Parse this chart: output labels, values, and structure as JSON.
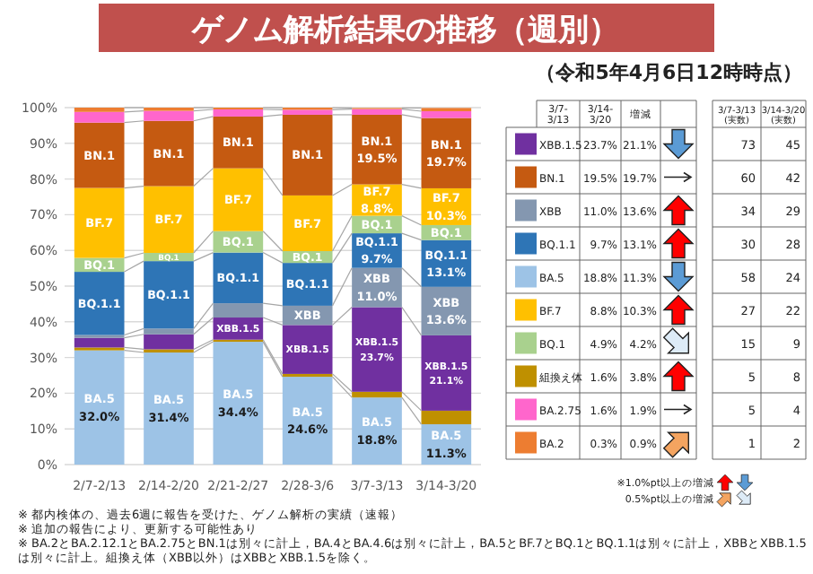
{
  "chart_data": {
    "type": "bar",
    "stacked": true,
    "title": "ゲノム解析結果の推移（週別）",
    "subtitle": "（令和5年4月6日12時時点）",
    "categories": [
      "2/7-2/13",
      "2/14-2/20",
      "2/21-2/27",
      "2/28-3/6",
      "3/7-3/13",
      "3/14-3/20"
    ],
    "ylim": [
      0,
      100
    ],
    "yticks": [
      {
        "value": 0,
        "label": "0%"
      },
      {
        "value": 10,
        "label": "10%"
      },
      {
        "value": 20,
        "label": "20%"
      },
      {
        "value": 30,
        "label": "30%"
      },
      {
        "value": 40,
        "label": "40%"
      },
      {
        "value": 50,
        "label": "50%"
      },
      {
        "value": 60,
        "label": "60%"
      },
      {
        "value": 70,
        "label": "70%"
      },
      {
        "value": 80,
        "label": "80%"
      },
      {
        "value": 90,
        "label": "90%"
      },
      {
        "value": 100,
        "label": "100%"
      }
    ],
    "grid": "y",
    "legend": "right",
    "series": [
      {
        "name": "BA.5",
        "color": "#9dc3e6",
        "values": [
          32.0,
          31.4,
          34.4,
          24.6,
          18.8,
          11.3
        ],
        "value_labels": [
          "BA.5\n32.0%",
          "BA.5\n31.4%",
          "BA.5\n34.4%",
          "BA.5\n24.6%",
          "BA.5\n18.8%",
          "BA.5\n11.3%"
        ]
      },
      {
        "name": "組換え体",
        "color": "#bf9000",
        "values": [
          0.8,
          0.9,
          0.6,
          0.8,
          1.6,
          3.8
        ]
      },
      {
        "name": "XBB.1.5",
        "color": "#7030a0",
        "values": [
          2.7,
          4.2,
          6.2,
          13.7,
          23.7,
          21.1
        ],
        "value_labels": [
          null,
          null,
          "XBB.1.5",
          "XBB.1.5",
          "XBB.1.5\n23.7%",
          "XBB.1.5\n21.1%"
        ]
      },
      {
        "name": "XBB",
        "color": "#8497b0",
        "values": [
          0.8,
          1.6,
          4.0,
          5.4,
          11.0,
          13.6
        ],
        "value_labels": [
          null,
          null,
          null,
          "XBB",
          "XBB\n11.0%",
          "XBB\n13.6%"
        ]
      },
      {
        "name": "BQ.1.1",
        "color": "#2e75b6",
        "values": [
          17.7,
          18.9,
          14.2,
          12.0,
          9.7,
          13.1
        ],
        "value_labels": [
          "BQ.1.1",
          "BQ.1.1",
          "BQ.1.1",
          "BQ.1.1",
          "BQ.1.1\n9.7%",
          "BQ.1.1\n13.1%"
        ]
      },
      {
        "name": "BQ.1",
        "color": "#a9d18e",
        "values": [
          3.9,
          2.3,
          6.0,
          3.3,
          4.9,
          4.2
        ],
        "value_labels": [
          "BQ.1",
          "BQ.1",
          "BQ.1",
          "BQ.1",
          "BQ.1",
          "BQ.1"
        ]
      },
      {
        "name": "BF.7",
        "color": "#ffc000",
        "values": [
          19.6,
          18.7,
          17.6,
          15.6,
          8.8,
          10.3
        ],
        "value_labels": [
          "BF.7",
          "BF.7",
          "BF.7",
          "BF.7",
          "BF.7\n8.8%",
          "BF.7\n10.3%"
        ]
      },
      {
        "name": "BN.1",
        "color": "#c55a11",
        "values": [
          18.3,
          18.3,
          14.5,
          22.6,
          19.5,
          19.7
        ],
        "value_labels": [
          "BN.1",
          "BN.1",
          "BN.1",
          "BN.1",
          "BN.1\n19.5%",
          "BN.1\n19.7%"
        ]
      },
      {
        "name": "BA.2.75",
        "color": "#ff66cc",
        "values": [
          3.0,
          2.8,
          2.0,
          1.4,
          1.6,
          1.9
        ]
      },
      {
        "name": "BA.2",
        "color": "#ed7d31",
        "values": [
          1.2,
          0.9,
          0.5,
          0.6,
          0.3,
          0.9
        ]
      }
    ],
    "annotations": [
      "※ 都内検体の、過去6週に報告を受けた、ゲノム解析の実績（速報）",
      "※ 追加の報告により、更新する可能性あり",
      "※ BA.2とBA.2.12.1とBA.2.75とBN.1は別々に計上，BA.4とBA.4.6は別々に計上，BA.5とBF.7とBQ.1とBQ.1.1は別々に計上，XBBとXBB.1.5は別々に計上。組換え体（XBB以外）はXBBとXBB.1.5を除く。",
      "※1.0%pt以上の増減",
      "0.5%pt以上の増減",
      "3/7-\n3/13",
      "3/14-\n3/20",
      "増減",
      "3/7-3/13\n(実数)",
      "3/14-3/20\n(実数)",
      "23.7%",
      "21.1%",
      "73",
      "45",
      "19.5%",
      "19.7%",
      "60",
      "42",
      "11.0%",
      "13.6%",
      "34",
      "29",
      "9.7%",
      "13.1%",
      "30",
      "28",
      "18.8%",
      "11.3%",
      "58",
      "24",
      "8.8%",
      "10.3%",
      "27",
      "22",
      "4.9%",
      "4.2%",
      "15",
      "9",
      "1.6%",
      "3.8%",
      "5",
      "8",
      "1.6%",
      "1.9%",
      "5",
      "4",
      "0.3%",
      "0.9%",
      "1",
      "2"
    ]
  }
}
